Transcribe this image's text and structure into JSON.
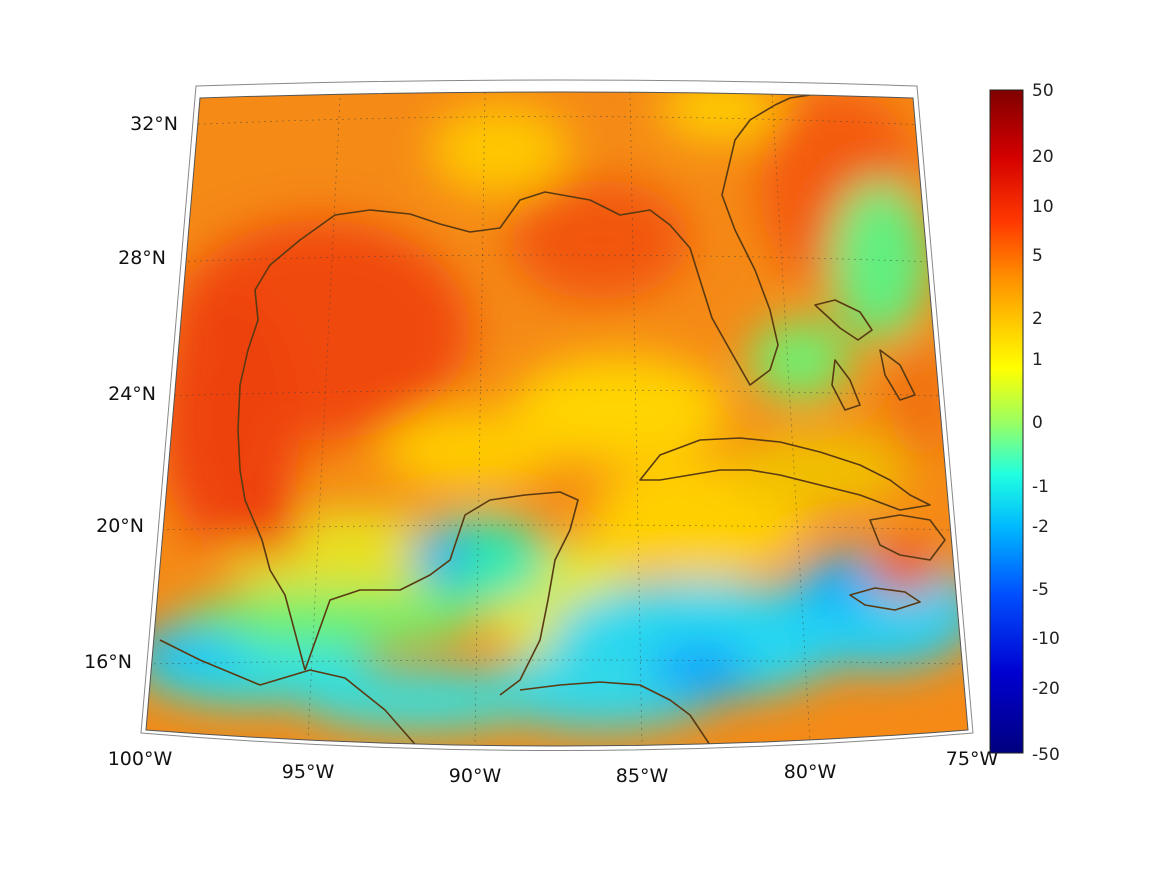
{
  "map": {
    "lon_labels": [
      "100°W",
      "95°W",
      "90°W",
      "85°W",
      "80°W",
      "75°W"
    ],
    "lat_labels": [
      "32°N",
      "28°N",
      "24°N",
      "20°N",
      "16°N"
    ],
    "colorbar": {
      "labels": [
        "50",
        "20",
        "10",
        "5",
        "2",
        "1",
        "0",
        "-1",
        "-2",
        "-5",
        "-10",
        "-20",
        "-50"
      ]
    },
    "colors": {
      "coastline": "#5a3a12",
      "dominant_field": "#f57a12"
    }
  }
}
